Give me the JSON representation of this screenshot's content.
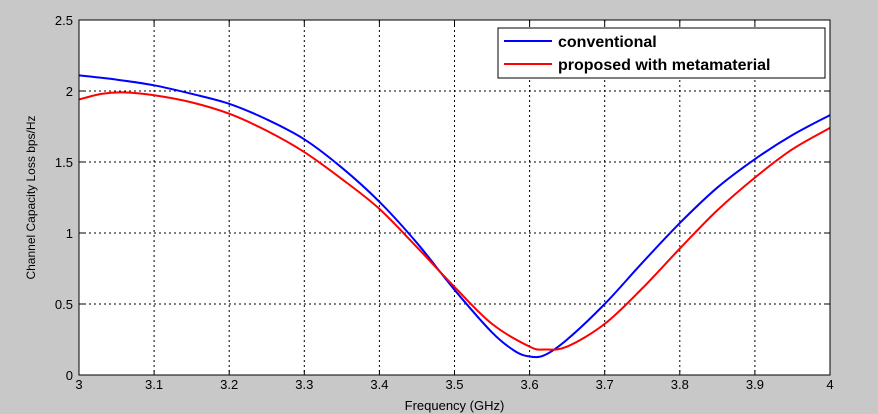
{
  "chart_data": {
    "type": "line",
    "title": "",
    "xlabel": "Frequency (GHz)",
    "ylabel": "Channel Capacity Loss bps/Hz",
    "xlim": [
      3,
      4
    ],
    "ylim": [
      0,
      2.5
    ],
    "grid": true,
    "legend_position": "top-right",
    "x_ticks": [
      "3",
      "3.1",
      "3.2",
      "3.3",
      "3.4",
      "3.5",
      "3.6",
      "3.7",
      "3.8",
      "3.9",
      "4"
    ],
    "y_ticks": [
      "0",
      "0.5",
      "1",
      "1.5",
      "2",
      "2.5"
    ],
    "x_tick_values": [
      3,
      3.1,
      3.2,
      3.3,
      3.4,
      3.5,
      3.6,
      3.7,
      3.8,
      3.9,
      4
    ],
    "y_tick_values": [
      0,
      0.5,
      1,
      1.5,
      2,
      2.5
    ],
    "series": [
      {
        "name": "conventional",
        "color": "#0000ff",
        "x": [
          3.0,
          3.05,
          3.1,
          3.15,
          3.2,
          3.25,
          3.3,
          3.35,
          3.4,
          3.45,
          3.5,
          3.55,
          3.58,
          3.6,
          3.62,
          3.65,
          3.7,
          3.75,
          3.8,
          3.85,
          3.9,
          3.95,
          4.0
        ],
        "values": [
          2.11,
          2.08,
          2.04,
          1.98,
          1.91,
          1.8,
          1.66,
          1.46,
          1.22,
          0.93,
          0.6,
          0.3,
          0.17,
          0.13,
          0.14,
          0.25,
          0.5,
          0.79,
          1.07,
          1.32,
          1.52,
          1.69,
          1.83
        ]
      },
      {
        "name": "proposed with metamaterial",
        "color": "#ff0000",
        "x": [
          3.0,
          3.03,
          3.06,
          3.1,
          3.15,
          3.2,
          3.25,
          3.3,
          3.35,
          3.4,
          3.45,
          3.5,
          3.55,
          3.6,
          3.62,
          3.65,
          3.7,
          3.75,
          3.8,
          3.85,
          3.9,
          3.95,
          4.0
        ],
        "values": [
          1.94,
          1.98,
          1.99,
          1.97,
          1.92,
          1.84,
          1.72,
          1.57,
          1.38,
          1.17,
          0.9,
          0.62,
          0.36,
          0.2,
          0.18,
          0.2,
          0.36,
          0.61,
          0.89,
          1.16,
          1.39,
          1.59,
          1.74
        ]
      }
    ]
  }
}
